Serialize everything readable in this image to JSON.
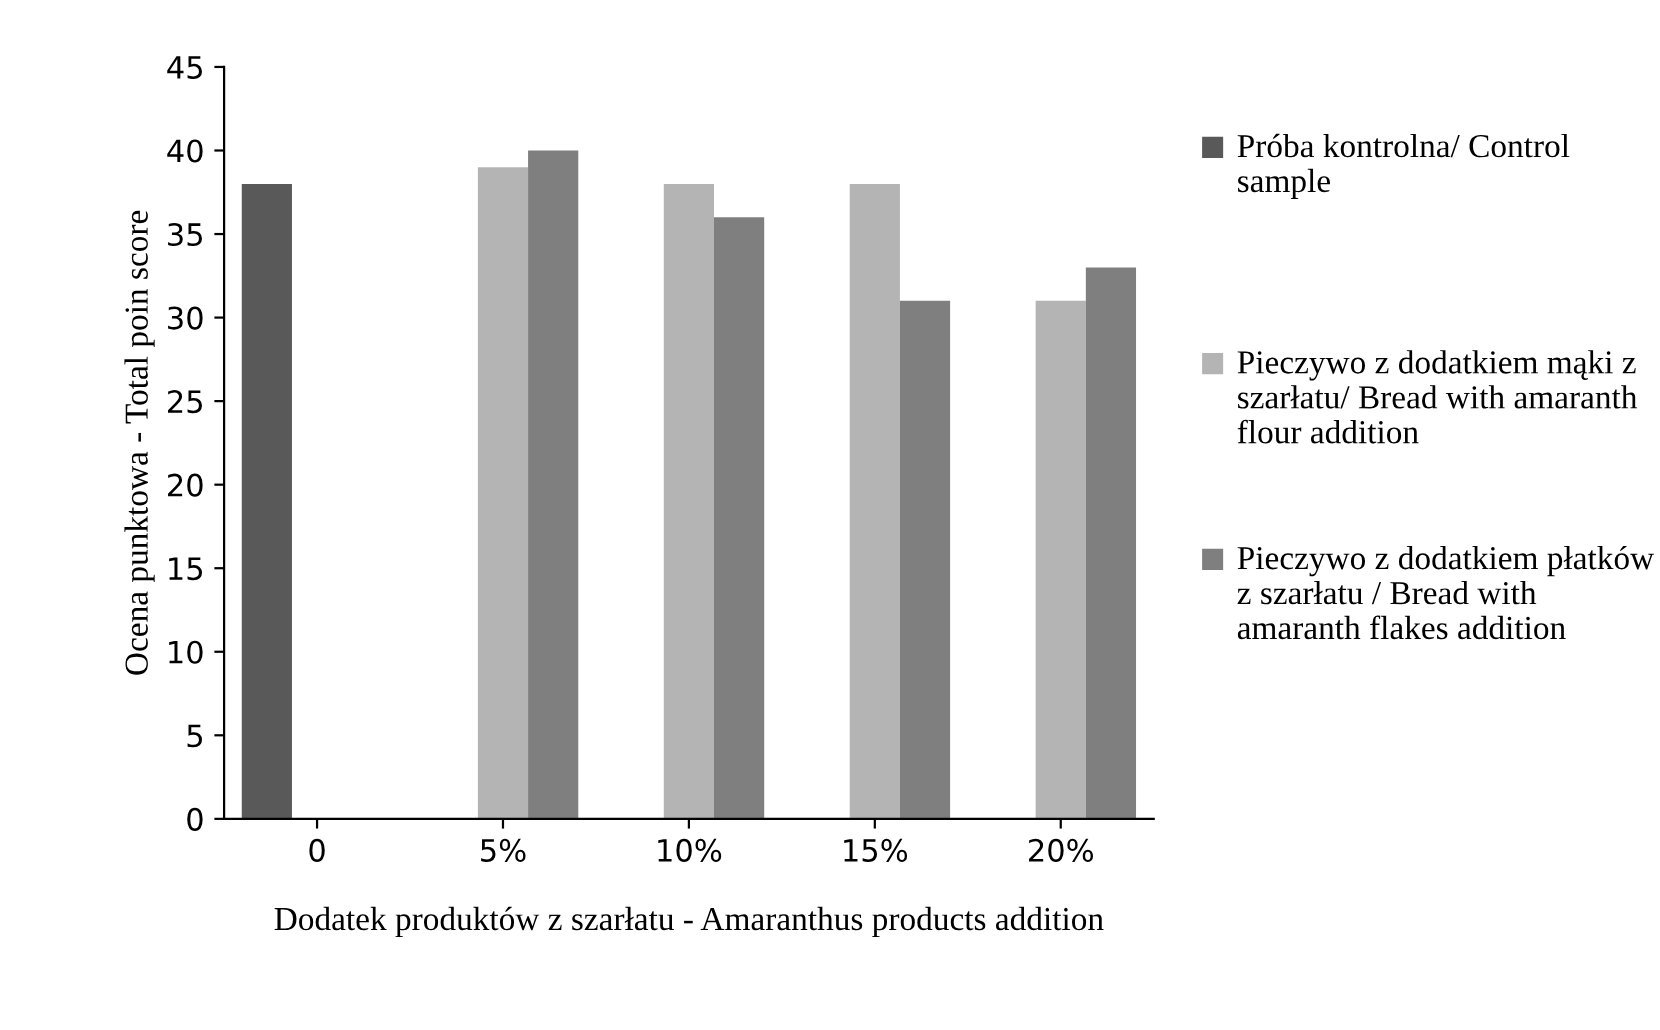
{
  "chart_data": {
    "type": "bar",
    "categories": [
      "0",
      "5%",
      "10%",
      "15%",
      "20%"
    ],
    "series": [
      {
        "name": "Próba kontrolna/ Control sample",
        "color": "#595959",
        "values": [
          38,
          null,
          null,
          null,
          null
        ]
      },
      {
        "name": "Pieczywo z dodatkiem mąki z szarłatu/ Bread with amaranth flour addition",
        "color": "#b4b4b4",
        "values": [
          null,
          39,
          38,
          38,
          31
        ]
      },
      {
        "name": "Pieczywo z dodatkiem płatków z szarłatu / Bread with amaranth flakes addition",
        "color": "#7f7f7f",
        "values": [
          null,
          40,
          36,
          31,
          33
        ]
      }
    ],
    "ylim": [
      0,
      45
    ],
    "yticks": [
      0,
      5,
      10,
      15,
      20,
      25,
      30,
      35,
      40,
      45
    ],
    "xlabel": "Dodatek produktów z szarłatu - Amaranthus products addition",
    "ylabel": "Ocena punktowa - Total poin score",
    "grid": false,
    "legend": "right"
  }
}
